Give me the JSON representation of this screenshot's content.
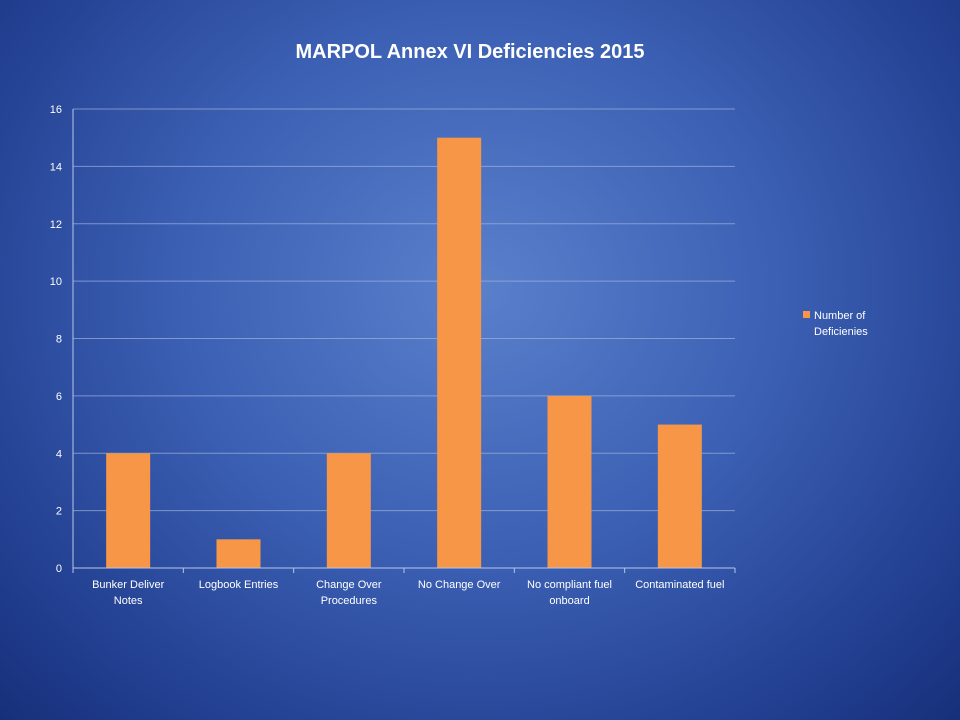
{
  "chart_data": {
    "type": "bar",
    "title": "MARPOL Annex VI Deficiencies 2015",
    "categories": [
      [
        "Bunker Deliver",
        "Notes"
      ],
      [
        "Logbook Entries"
      ],
      [
        "Change Over",
        "Procedures"
      ],
      [
        "No Change Over"
      ],
      [
        "No compliant fuel",
        "onboard"
      ],
      [
        "Contaminated fuel"
      ]
    ],
    "series": [
      {
        "name": [
          "Number of",
          "Deficienies"
        ],
        "values": [
          4,
          1,
          4,
          15,
          6,
          5
        ],
        "color": "#f79646"
      }
    ],
    "ylim": [
      0,
      16
    ],
    "yticks": [
      0,
      2,
      4,
      6,
      8,
      10,
      12,
      14,
      16
    ],
    "grid": true,
    "legend": "right"
  }
}
